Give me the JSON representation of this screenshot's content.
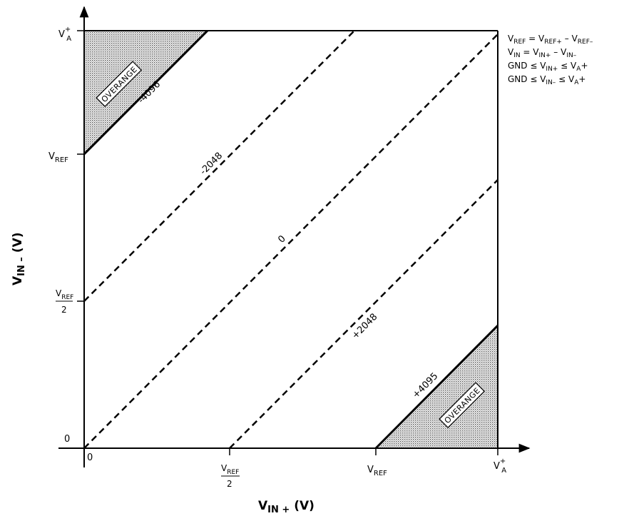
{
  "axes": {
    "x_label": {
      "main": "V",
      "sub": "IN +",
      "unit": " (V)"
    },
    "y_label": {
      "main": "V",
      "sub": "IN –",
      "unit": " (V)"
    },
    "x_ticks": {
      "zero": "0",
      "half": {
        "main": "V",
        "sub": "REF",
        "den": "2"
      },
      "ref": {
        "main": "V",
        "sub": "REF"
      },
      "va": {
        "main": "V",
        "sup": "+",
        "sub": "A"
      }
    },
    "y_ticks": {
      "zero": "0",
      "half": {
        "main": "V",
        "sub": "REF",
        "den": "2"
      },
      "ref": {
        "main": "V",
        "sub": "REF"
      },
      "va": {
        "main": "V",
        "sup": "+",
        "sub": "A"
      }
    }
  },
  "regions": {
    "top_left": "OVERANGE",
    "bottom_right": "OVERANGE"
  },
  "lines": {
    "minus4096": "-4096",
    "minus2048": "-2048",
    "zero": "0",
    "plus2048": "+2048",
    "plus4095": "+4095"
  },
  "equations": {
    "eq1": {
      "a": "V",
      "a_sub": "REF",
      "op": " = ",
      "b": "V",
      "b_sub": "REF+",
      "op2": " – ",
      "c": "V",
      "c_sub": "REF–"
    },
    "eq2": {
      "a": "V",
      "a_sub": "IN",
      "op": " = ",
      "b": "V",
      "b_sub": "IN+",
      "op2": " – ",
      "c": "V",
      "c_sub": "IN–"
    },
    "eq3": {
      "a": "GND ≤ ",
      "b": "V",
      "b_sub": "IN+",
      "op": " ≤ ",
      "c": "V",
      "c_sub": "A",
      "tail": "+"
    },
    "eq4": {
      "a": "GND ≤ ",
      "b": "V",
      "b_sub": "IN–",
      "op": " ≤ ",
      "c": "V",
      "c_sub": "A",
      "tail": "+"
    }
  },
  "colors": {
    "ink": "#000000",
    "shade": "#bdbdbd",
    "background": "#ffffff"
  }
}
